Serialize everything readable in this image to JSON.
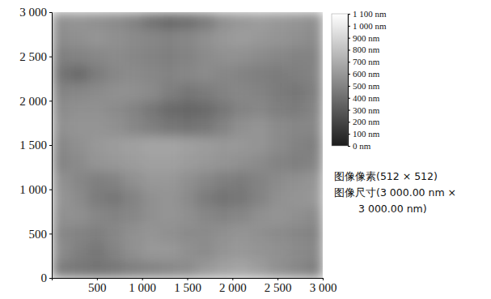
{
  "chart_data": {
    "type": "heatmap",
    "xlim": [
      0,
      3000
    ],
    "ylim": [
      0,
      3000
    ],
    "xticks": [
      500,
      {
        "value": 1000,
        "label": "1 000"
      },
      {
        "value": 1500,
        "label": "1 500"
      },
      {
        "value": 2000,
        "label": "2 000"
      },
      {
        "value": 2500,
        "label": "2 500"
      },
      {
        "value": 3000,
        "label": "3 000"
      }
    ],
    "yticks": [
      0,
      500,
      {
        "value": 1000,
        "label": "1 000"
      },
      {
        "value": 1500,
        "label": "1 500"
      },
      {
        "value": 2000,
        "label": "2 000"
      },
      {
        "value": 2500,
        "label": "2 500"
      },
      {
        "value": 3000,
        "label": "3 000"
      }
    ],
    "cells": [
      [
        560,
        580,
        560,
        540,
        500,
        420,
        380,
        400,
        460,
        560,
        600,
        620,
        600,
        580,
        560
      ],
      [
        540,
        560,
        580,
        560,
        540,
        520,
        500,
        520,
        560,
        600,
        620,
        600,
        580,
        560,
        540
      ],
      [
        480,
        500,
        520,
        540,
        520,
        500,
        480,
        500,
        540,
        560,
        560,
        540,
        520,
        500,
        500
      ],
      [
        420,
        380,
        460,
        520,
        540,
        520,
        500,
        520,
        540,
        520,
        500,
        480,
        460,
        480,
        500
      ],
      [
        500,
        520,
        540,
        560,
        560,
        540,
        480,
        440,
        460,
        500,
        520,
        500,
        460,
        440,
        480
      ],
      [
        540,
        560,
        560,
        540,
        500,
        440,
        380,
        360,
        380,
        440,
        500,
        520,
        480,
        460,
        500
      ],
      [
        560,
        580,
        580,
        560,
        520,
        480,
        440,
        420,
        440,
        500,
        560,
        580,
        540,
        520,
        520
      ],
      [
        520,
        560,
        600,
        620,
        640,
        660,
        660,
        640,
        620,
        600,
        600,
        580,
        540,
        500,
        480
      ],
      [
        500,
        540,
        580,
        600,
        620,
        640,
        640,
        620,
        600,
        580,
        560,
        540,
        500,
        480,
        500
      ],
      [
        560,
        520,
        480,
        500,
        560,
        600,
        600,
        560,
        520,
        480,
        460,
        500,
        540,
        560,
        580
      ],
      [
        580,
        540,
        460,
        440,
        500,
        560,
        580,
        540,
        460,
        420,
        440,
        500,
        560,
        580,
        600
      ],
      [
        560,
        560,
        520,
        500,
        520,
        560,
        580,
        560,
        520,
        500,
        520,
        560,
        580,
        560,
        540
      ],
      [
        520,
        500,
        480,
        520,
        560,
        580,
        560,
        540,
        540,
        560,
        580,
        560,
        540,
        520,
        500
      ],
      [
        540,
        480,
        440,
        500,
        560,
        600,
        600,
        560,
        540,
        580,
        600,
        580,
        560,
        540,
        520
      ],
      [
        460,
        440,
        420,
        440,
        480,
        500,
        520,
        540,
        600,
        640,
        660,
        620,
        560,
        520,
        480
      ]
    ],
    "colorbar": {
      "range": [
        0,
        1100
      ],
      "colors": [
        "#1c1c1c",
        "#ffffff"
      ],
      "ticks": [
        {
          "value": 0,
          "label": "0 nm"
        },
        {
          "value": 100,
          "label": "100 nm"
        },
        {
          "value": 200,
          "label": "200 nm"
        },
        {
          "value": 300,
          "label": "300 nm"
        },
        {
          "value": 400,
          "label": "400 nm"
        },
        {
          "value": 500,
          "label": "500 nm"
        },
        {
          "value": 600,
          "label": "600 nm"
        },
        {
          "value": 700,
          "label": "700 nm"
        },
        {
          "value": 800,
          "label": "800 nm"
        },
        {
          "value": 900,
          "label": "900 nm"
        },
        {
          "value": 1000,
          "label": "1 000 nm"
        },
        {
          "value": 1100,
          "label": "1 100 nm"
        }
      ]
    },
    "annotations": [
      "图像像素(512 × 512)",
      "图像尺寸(3 000.00 nm ×",
      "3 000.00 nm)"
    ]
  }
}
